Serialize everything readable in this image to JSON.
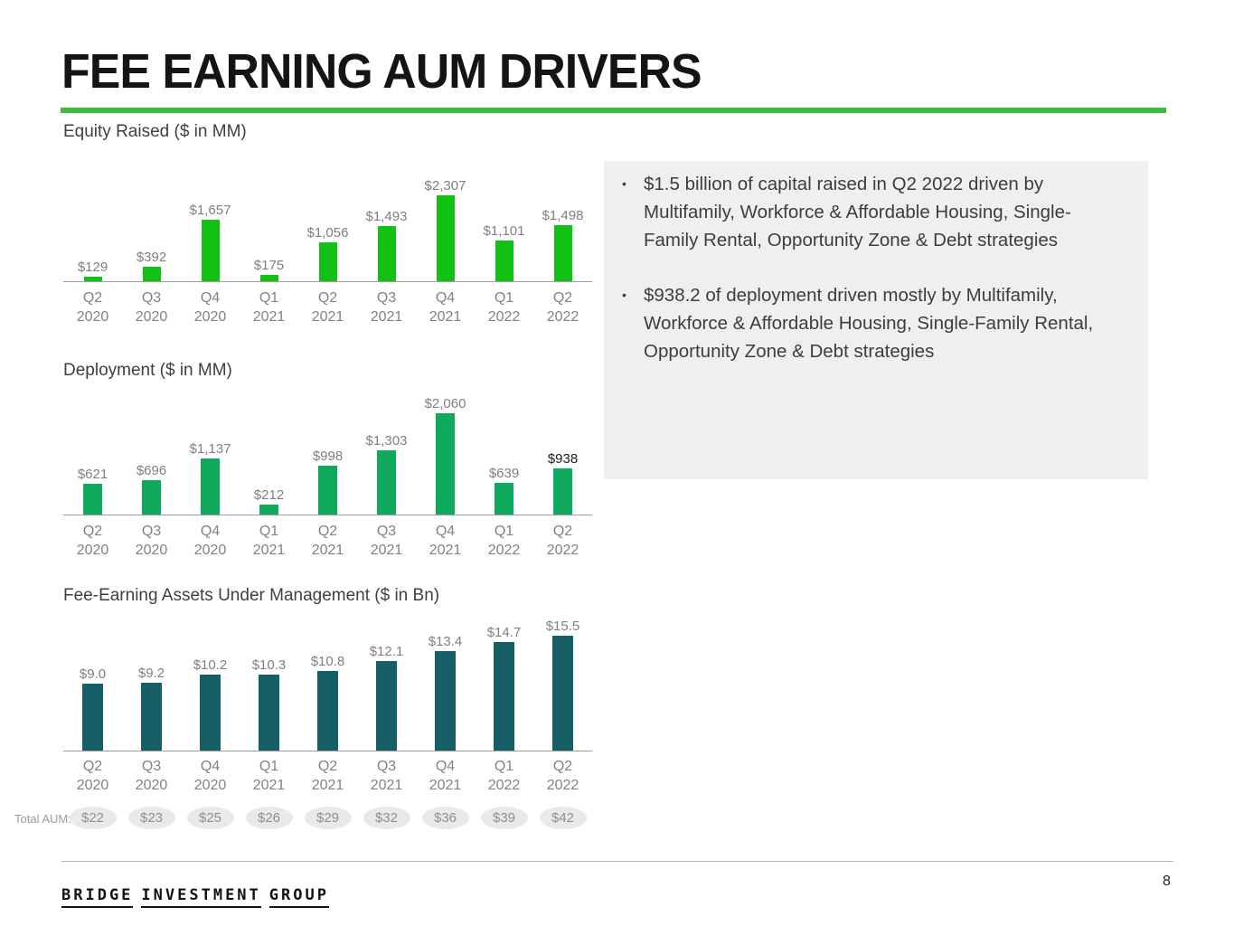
{
  "title": "FEE EARNING AUM DRIVERS",
  "colors": {
    "accent_rule": "#3bbd3b",
    "equity_bar": "#12c114",
    "deployment_bar": "#0fa95e",
    "feaum_bar": "#175f66",
    "callout_bg": "#efefef"
  },
  "chart_data": [
    {
      "type": "bar",
      "title": "Equity Raised ($ in MM)",
      "categories": [
        "Q2 2020",
        "Q3 2020",
        "Q4 2020",
        "Q1 2021",
        "Q2 2021",
        "Q3 2021",
        "Q4 2021",
        "Q1 2022",
        "Q2 2022"
      ],
      "values": [
        129,
        392,
        1657,
        175,
        1056,
        1493,
        2307,
        1101,
        1498
      ],
      "value_labels": [
        "$129",
        "$392",
        "$1,657",
        "$175",
        "$1,056",
        "$1,493",
        "$2,307",
        "$1,101",
        "$1,498"
      ],
      "bar_color": "#12c114",
      "xlabel": "",
      "ylabel": "$ in MM",
      "ylim": [
        0,
        2307
      ],
      "grid": false,
      "legend": false,
      "emphasized_label_index": null
    },
    {
      "type": "bar",
      "title": "Deployment ($ in MM)",
      "categories": [
        "Q2 2020",
        "Q3 2020",
        "Q4 2020",
        "Q1 2021",
        "Q2 2021",
        "Q3 2021",
        "Q4 2021",
        "Q1 2022",
        "Q2 2022"
      ],
      "values": [
        621,
        696,
        1137,
        212,
        998,
        1303,
        2060,
        639,
        938
      ],
      "value_labels": [
        "$621",
        "$696",
        "$1,137",
        "$212",
        "$998",
        "$1,303",
        "$2,060",
        "$639",
        "$938"
      ],
      "bar_color": "#0fa95e",
      "xlabel": "",
      "ylabel": "$ in MM",
      "ylim": [
        0,
        2060
      ],
      "grid": false,
      "legend": false,
      "emphasized_label_index": 8
    },
    {
      "type": "bar",
      "title": "Fee-Earning Assets Under Management ($ in Bn)",
      "categories": [
        "Q2 2020",
        "Q3 2020",
        "Q4 2020",
        "Q1 2021",
        "Q2 2021",
        "Q3 2021",
        "Q4 2021",
        "Q1 2022",
        "Q2 2022"
      ],
      "values": [
        9.0,
        9.2,
        10.2,
        10.3,
        10.8,
        12.1,
        13.4,
        14.7,
        15.5
      ],
      "value_labels": [
        "$9.0",
        "$9.2",
        "$10.2",
        "$10.3",
        "$10.8",
        "$12.1",
        "$13.4",
        "$14.7",
        "$15.5"
      ],
      "bar_color": "#175f66",
      "xlabel": "",
      "ylabel": "$ in Bn",
      "ylim": [
        0,
        15.5
      ],
      "grid": false,
      "legend": false,
      "emphasized_label_index": null
    }
  ],
  "total_aum": {
    "label": "Total AUM:",
    "values": [
      "$22",
      "$23",
      "$25",
      "$26",
      "$29",
      "$32",
      "$36",
      "$39",
      "$42"
    ]
  },
  "callout": {
    "bullets": [
      "$1.5 billion of capital raised in Q2 2022 driven by Multifamily, Workforce & Affordable Housing, Single-Family Rental, Opportunity Zone & Debt strategies",
      "$938.2 of deployment driven mostly by Multifamily, Workforce & Affordable Housing, Single-Family Rental, Opportunity Zone & Debt strategies"
    ]
  },
  "footer": {
    "logo_words": [
      "BRIDGE",
      "INVESTMENT",
      "GROUP"
    ],
    "page_number": "8"
  }
}
